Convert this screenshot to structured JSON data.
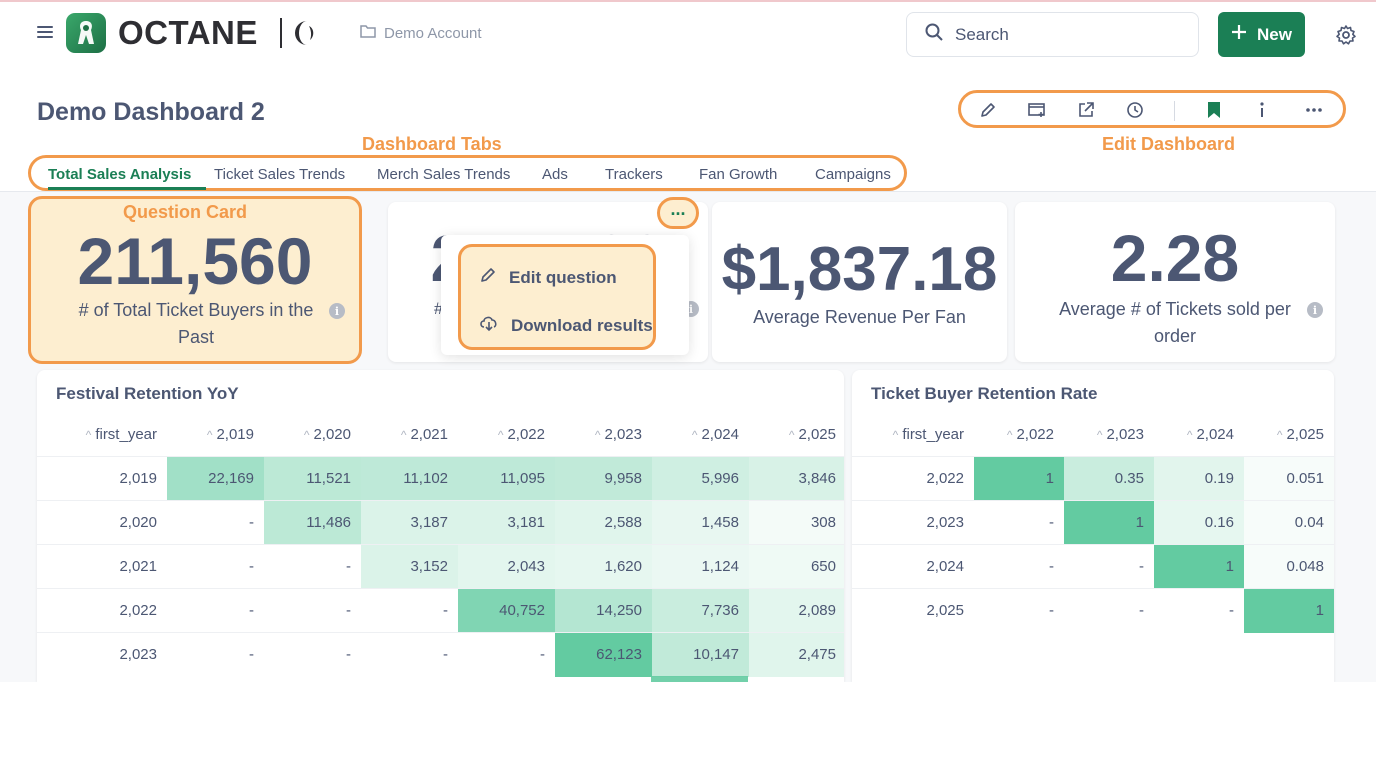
{
  "header": {
    "logo_text": "OCTANE",
    "breadcrumb": "Demo Account",
    "search_label": "Search",
    "new_label": "New"
  },
  "dashboard": {
    "title": "Demo Dashboard 2",
    "tabs": [
      "Total Sales Analysis",
      "Ticket Sales Trends",
      "Merch Sales Trends",
      "Ads",
      "Trackers",
      "Fan Growth",
      "Campaigns"
    ],
    "active_tab": "Total Sales Analysis",
    "toolbar_icons": [
      "pencil-icon",
      "subscription-icon",
      "share-icon",
      "history-icon",
      "bookmark-icon",
      "info-icon",
      "more-icon"
    ]
  },
  "annotations": {
    "tabs": "Dashboard Tabs",
    "edit": "Edit Dashboard",
    "question_card": "Question Card"
  },
  "cards": [
    {
      "value": "211,560",
      "label": "# of Total Ticket Buyers in the Past"
    },
    {
      "value": "211,560",
      "label": "#"
    },
    {
      "value": "$1,837.18",
      "label": "Average Revenue Per Fan"
    },
    {
      "value": "2.28",
      "label": "Average # of Tickets sold per order"
    }
  ],
  "menu": {
    "dots": "...",
    "edit": "Edit question",
    "download": "Download results"
  },
  "retention": {
    "title": "Festival Retention YoY",
    "columns": [
      "first_year",
      "2,019",
      "2,020",
      "2,021",
      "2,022",
      "2,023",
      "2,024",
      "2,025"
    ],
    "rows": [
      [
        "2,019",
        "22,169",
        "11,521",
        "11,102",
        "11,095",
        "9,958",
        "5,996",
        "3,846"
      ],
      [
        "2,020",
        "-",
        "11,486",
        "3,187",
        "3,181",
        "2,588",
        "1,458",
        "308"
      ],
      [
        "2,021",
        "-",
        "-",
        "3,152",
        "2,043",
        "1,620",
        "1,124",
        "650"
      ],
      [
        "2,022",
        "-",
        "-",
        "-",
        "40,752",
        "14,250",
        "7,736",
        "2,089"
      ],
      [
        "2,023",
        "-",
        "-",
        "-",
        "-",
        "62,123",
        "10,147",
        "2,475"
      ]
    ]
  },
  "retention_rate": {
    "title": "Ticket Buyer Retention Rate",
    "columns": [
      "first_year",
      "2,022",
      "2,023",
      "2,024",
      "2,025"
    ],
    "rows": [
      [
        "2,022",
        "1",
        "0.35",
        "0.19",
        "0.051"
      ],
      [
        "2,023",
        "-",
        "1",
        "0.16",
        "0.04"
      ],
      [
        "2,024",
        "-",
        "-",
        "1",
        "0.048"
      ],
      [
        "2,025",
        "-",
        "-",
        "-",
        "1"
      ]
    ]
  },
  "colors": {
    "brand_green": "#1b7f55",
    "highlight_orange": "#f29a4b",
    "highlight_fill": "#fdeed0"
  }
}
